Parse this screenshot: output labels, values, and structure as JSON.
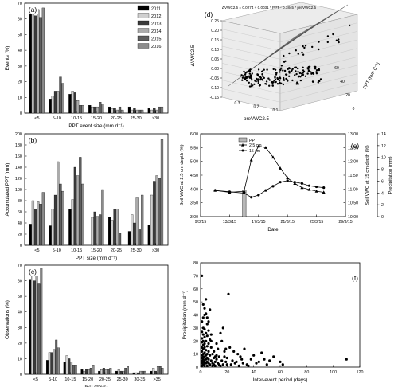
{
  "chart_data": [
    {
      "panel": "(a)",
      "type": "bar",
      "xlabel": "PPT event size (mm d⁻¹)",
      "ylabel": "Events (%)",
      "ylim": [
        0,
        70
      ],
      "yticks": [
        0,
        10,
        20,
        30,
        40,
        50,
        60,
        70
      ],
      "categories": [
        "<5",
        "5-10",
        "10-15",
        "15-20",
        "20-25",
        "25-30",
        ">30"
      ],
      "legend": "top-right",
      "series": [
        {
          "name": "2011",
          "color": "#000000",
          "values": [
            64,
            9,
            12,
            5,
            4,
            4,
            3
          ]
        },
        {
          "name": "2012",
          "color": "#d0d0d0",
          "values": [
            68,
            11,
            14,
            4,
            3,
            2,
            2
          ]
        },
        {
          "name": "2013",
          "color": "#3a3a3a",
          "values": [
            62,
            14,
            13,
            4,
            3,
            3,
            3
          ]
        },
        {
          "name": "2014",
          "color": "#ababab",
          "values": [
            66,
            14,
            8,
            4,
            2,
            2,
            2
          ]
        },
        {
          "name": "2015",
          "color": "#5e5e5e",
          "values": [
            61,
            23,
            5,
            7,
            4,
            2,
            4
          ]
        },
        {
          "name": "2016",
          "color": "#8c8c8c",
          "values": [
            67,
            19,
            5,
            6,
            2,
            2,
            4
          ]
        }
      ]
    },
    {
      "panel": "(b)",
      "type": "bar",
      "xlabel": "PPT size (mm d⁻¹)",
      "ylabel": "Accumulated PPT (mm)",
      "ylim": [
        0,
        200
      ],
      "yticks": [
        0,
        20,
        40,
        60,
        80,
        100,
        120,
        140,
        160,
        180,
        200
      ],
      "categories": [
        "<5",
        "5-10",
        "10-15",
        "15-20",
        "20-25",
        "25-30",
        ">30"
      ],
      "series": [
        {
          "name": "2011",
          "values": [
            38,
            35,
            65,
            0,
            50,
            25,
            36
          ]
        },
        {
          "name": "2012",
          "values": [
            80,
            65,
            82,
            50,
            45,
            55,
            90
          ]
        },
        {
          "name": "2013",
          "values": [
            65,
            90,
            140,
            60,
            65,
            40,
            115
          ]
        },
        {
          "name": "2014",
          "values": [
            78,
            150,
            125,
            52,
            65,
            85,
            125
          ]
        },
        {
          "name": "2015",
          "values": [
            74,
            110,
            158,
            55,
            21,
            28,
            120
          ]
        },
        {
          "name": "2016",
          "values": [
            95,
            97,
            110,
            100,
            0,
            90,
            190
          ]
        }
      ]
    },
    {
      "panel": "(c)",
      "type": "bar",
      "xlabel": "IEP (days)",
      "ylabel": "Observations (%)",
      "ylim": [
        0,
        70
      ],
      "yticks": [
        0,
        10,
        20,
        30,
        40,
        50,
        60,
        70
      ],
      "categories": [
        "<5",
        "5-10",
        "10-15",
        "15-20",
        "20-25",
        "25-30",
        "30-35",
        ">35"
      ],
      "series": [
        {
          "name": "2011",
          "values": [
            61,
            9,
            8,
            3,
            2,
            2,
            1,
            2
          ]
        },
        {
          "name": "2012",
          "values": [
            63,
            14,
            12,
            2,
            3,
            3,
            1,
            4
          ]
        },
        {
          "name": "2013",
          "values": [
            60,
            14,
            10,
            3,
            4,
            2,
            1,
            2
          ]
        },
        {
          "name": "2014",
          "values": [
            63,
            16,
            8,
            3,
            3,
            2,
            2,
            5
          ]
        },
        {
          "name": "2015",
          "values": [
            58,
            22,
            6,
            4,
            3,
            4,
            2,
            5
          ]
        },
        {
          "name": "2016",
          "values": [
            68,
            17,
            6,
            6,
            4,
            5,
            2,
            4
          ]
        }
      ]
    },
    {
      "panel": "(d)",
      "type": "scatter",
      "title": "ΔVWC2.5 = 0.0274 + 0.0031 * PPT - 0.1845 * preVWC2.5",
      "xlabel": "preVWC2.5",
      "ylabel": "PPT (mm d⁻¹)",
      "zlabel": "ΔVWC2.5",
      "zticks": [
        "-0.15",
        "-0.10",
        "-0.05",
        "0.00",
        "0.05",
        "0.10",
        "0.15",
        "0.20",
        "0.25"
      ],
      "xticks": [
        "0.3",
        "0.2",
        "0.1"
      ],
      "yticks": [
        "0",
        "20",
        "40",
        "60"
      ],
      "plane": {
        "intercept": 0.0274,
        "ppt_coef": 0.0031,
        "pre_coef": -0.1845
      }
    },
    {
      "panel": "(e)",
      "type": "line",
      "xlabel": "Date",
      "ylabel": "Soil VWC at 2.5 cm depth (%)",
      "y2label": "Soil VWC at 15 cm depth (%)",
      "y3label": "Precipitation (mm)",
      "xticks": [
        "9/3/15",
        "13/3/15",
        "17/3/15",
        "21/3/15",
        "25/3/15",
        "29/3/15"
      ],
      "yticks": [
        "3.00",
        "3.50",
        "4.00",
        "4.50",
        "5.00",
        "5.50",
        "6.00"
      ],
      "y2ticks": [
        "10.00",
        "10.50",
        "11.00",
        "11.50",
        "12.00",
        "12.50",
        "13.00"
      ],
      "y3ticks": [
        "0",
        "2",
        "4",
        "6",
        "8",
        "10",
        "12",
        "14"
      ],
      "ylim": [
        3.0,
        6.0
      ],
      "y2lim": [
        10.0,
        13.0
      ],
      "y3lim": [
        0,
        14
      ],
      "legend": "top-left",
      "ppt": {
        "name": "PPT",
        "x": [
          "15/3/15"
        ],
        "values": [
          4.5
        ]
      },
      "series": [
        {
          "name": "2.5 cm",
          "marker": "triangle",
          "x": [
            "11/3/15",
            "13/3/15",
            "15/3/15",
            "16/3/15",
            "17/3/15",
            "18/3/15",
            "19/3/15",
            "20/3/15",
            "21/3/15",
            "22/3/15",
            "23/3/15",
            "24/3/15",
            "25/3/15",
            "26/3/15"
          ],
          "values": [
            3.95,
            3.88,
            3.92,
            5.05,
            5.55,
            5.5,
            5.15,
            4.75,
            4.4,
            4.2,
            4.05,
            3.98,
            3.92,
            3.88
          ]
        },
        {
          "name": "15 cm",
          "marker": "circle",
          "x": [
            "11/3/15",
            "13/3/15",
            "15/3/15",
            "16/3/15",
            "17/3/15",
            "18/3/15",
            "19/3/15",
            "20/3/15",
            "21/3/15",
            "22/3/15",
            "23/3/15",
            "24/3/15",
            "25/3/15",
            "26/3/15"
          ],
          "values": [
            10.95,
            10.9,
            10.85,
            10.7,
            10.78,
            10.95,
            11.1,
            11.25,
            11.3,
            11.25,
            11.2,
            11.12,
            11.08,
            11.05
          ]
        }
      ]
    },
    {
      "panel": "(f)",
      "type": "scatter",
      "xlabel": "Inter-event period (days)",
      "ylabel": "Precipitation (mm d⁻¹)",
      "xlim": [
        0,
        120
      ],
      "ylim": [
        0,
        80
      ],
      "xticks": [
        0,
        20,
        40,
        60,
        80,
        100,
        120
      ],
      "yticks": [
        0,
        10,
        20,
        30,
        40,
        50,
        60,
        70,
        80
      ],
      "points": [
        [
          1,
          70
        ],
        [
          2,
          48
        ],
        [
          3,
          45
        ],
        [
          4,
          41
        ],
        [
          5,
          38
        ],
        [
          1,
          35
        ],
        [
          2,
          30
        ],
        [
          3,
          29
        ],
        [
          6,
          28
        ],
        [
          1,
          27
        ],
        [
          4,
          26
        ],
        [
          2,
          25
        ],
        [
          5,
          24
        ],
        [
          3,
          23
        ],
        [
          1,
          22
        ],
        [
          7,
          21
        ],
        [
          2,
          20
        ],
        [
          4,
          20
        ],
        [
          1,
          19
        ],
        [
          3,
          18
        ],
        [
          6,
          18
        ],
        [
          2,
          17
        ],
        [
          5,
          16
        ],
        [
          1,
          15
        ],
        [
          3,
          15
        ],
        [
          8,
          15
        ],
        [
          2,
          14
        ],
        [
          4,
          13
        ],
        [
          1,
          12
        ],
        [
          6,
          12
        ],
        [
          3,
          11
        ],
        [
          2,
          10
        ],
        [
          5,
          10
        ],
        [
          1,
          9
        ],
        [
          4,
          9
        ],
        [
          7,
          9
        ],
        [
          2,
          8
        ],
        [
          3,
          8
        ],
        [
          1,
          7
        ],
        [
          5,
          7
        ],
        [
          2,
          6
        ],
        [
          4,
          6
        ],
        [
          6,
          6
        ],
        [
          1,
          5
        ],
        [
          3,
          5
        ],
        [
          8,
          5
        ],
        [
          2,
          4
        ],
        [
          5,
          4
        ],
        [
          1,
          3
        ],
        [
          3,
          3
        ],
        [
          4,
          3
        ],
        [
          6,
          3
        ],
        [
          2,
          2
        ],
        [
          7,
          2
        ],
        [
          1,
          1
        ],
        [
          3,
          1
        ],
        [
          5,
          1
        ],
        [
          9,
          1
        ],
        [
          10,
          2
        ],
        [
          11,
          4
        ],
        [
          12,
          6
        ],
        [
          13,
          3
        ],
        [
          14,
          8
        ],
        [
          15,
          1
        ],
        [
          16,
          5
        ],
        [
          17,
          2
        ],
        [
          18,
          12
        ],
        [
          19,
          4
        ],
        [
          20,
          2
        ],
        [
          10,
          12
        ],
        [
          12,
          18
        ],
        [
          9,
          10
        ],
        [
          11,
          8
        ],
        [
          13,
          14
        ],
        [
          14,
          2
        ],
        [
          8,
          20
        ],
        [
          9,
          3
        ],
        [
          10,
          7
        ],
        [
          11,
          1
        ],
        [
          12,
          9
        ],
        [
          21,
          56
        ],
        [
          16,
          20
        ],
        [
          18,
          8
        ],
        [
          22,
          15
        ],
        [
          25,
          12
        ],
        [
          24,
          5
        ],
        [
          26,
          3
        ],
        [
          28,
          10
        ],
        [
          30,
          8
        ],
        [
          20,
          7
        ],
        [
          23,
          2
        ],
        [
          27,
          4
        ],
        [
          29,
          1
        ],
        [
          31,
          6
        ],
        [
          32,
          3
        ],
        [
          33,
          14
        ],
        [
          35,
          2
        ],
        [
          38,
          6
        ],
        [
          40,
          9
        ],
        [
          42,
          3
        ],
        [
          44,
          4
        ],
        [
          46,
          11
        ],
        [
          48,
          6
        ],
        [
          50,
          2
        ],
        [
          52,
          5
        ],
        [
          55,
          8
        ],
        [
          60,
          4
        ],
        [
          62,
          2
        ],
        [
          110,
          6
        ],
        [
          36,
          1
        ],
        [
          15,
          26
        ],
        [
          17,
          30
        ],
        [
          19,
          14
        ],
        [
          7,
          44
        ],
        [
          4,
          52
        ],
        [
          2,
          38
        ],
        [
          3,
          40
        ],
        [
          5,
          33
        ],
        [
          6,
          35
        ],
        [
          8,
          25
        ]
      ]
    }
  ]
}
